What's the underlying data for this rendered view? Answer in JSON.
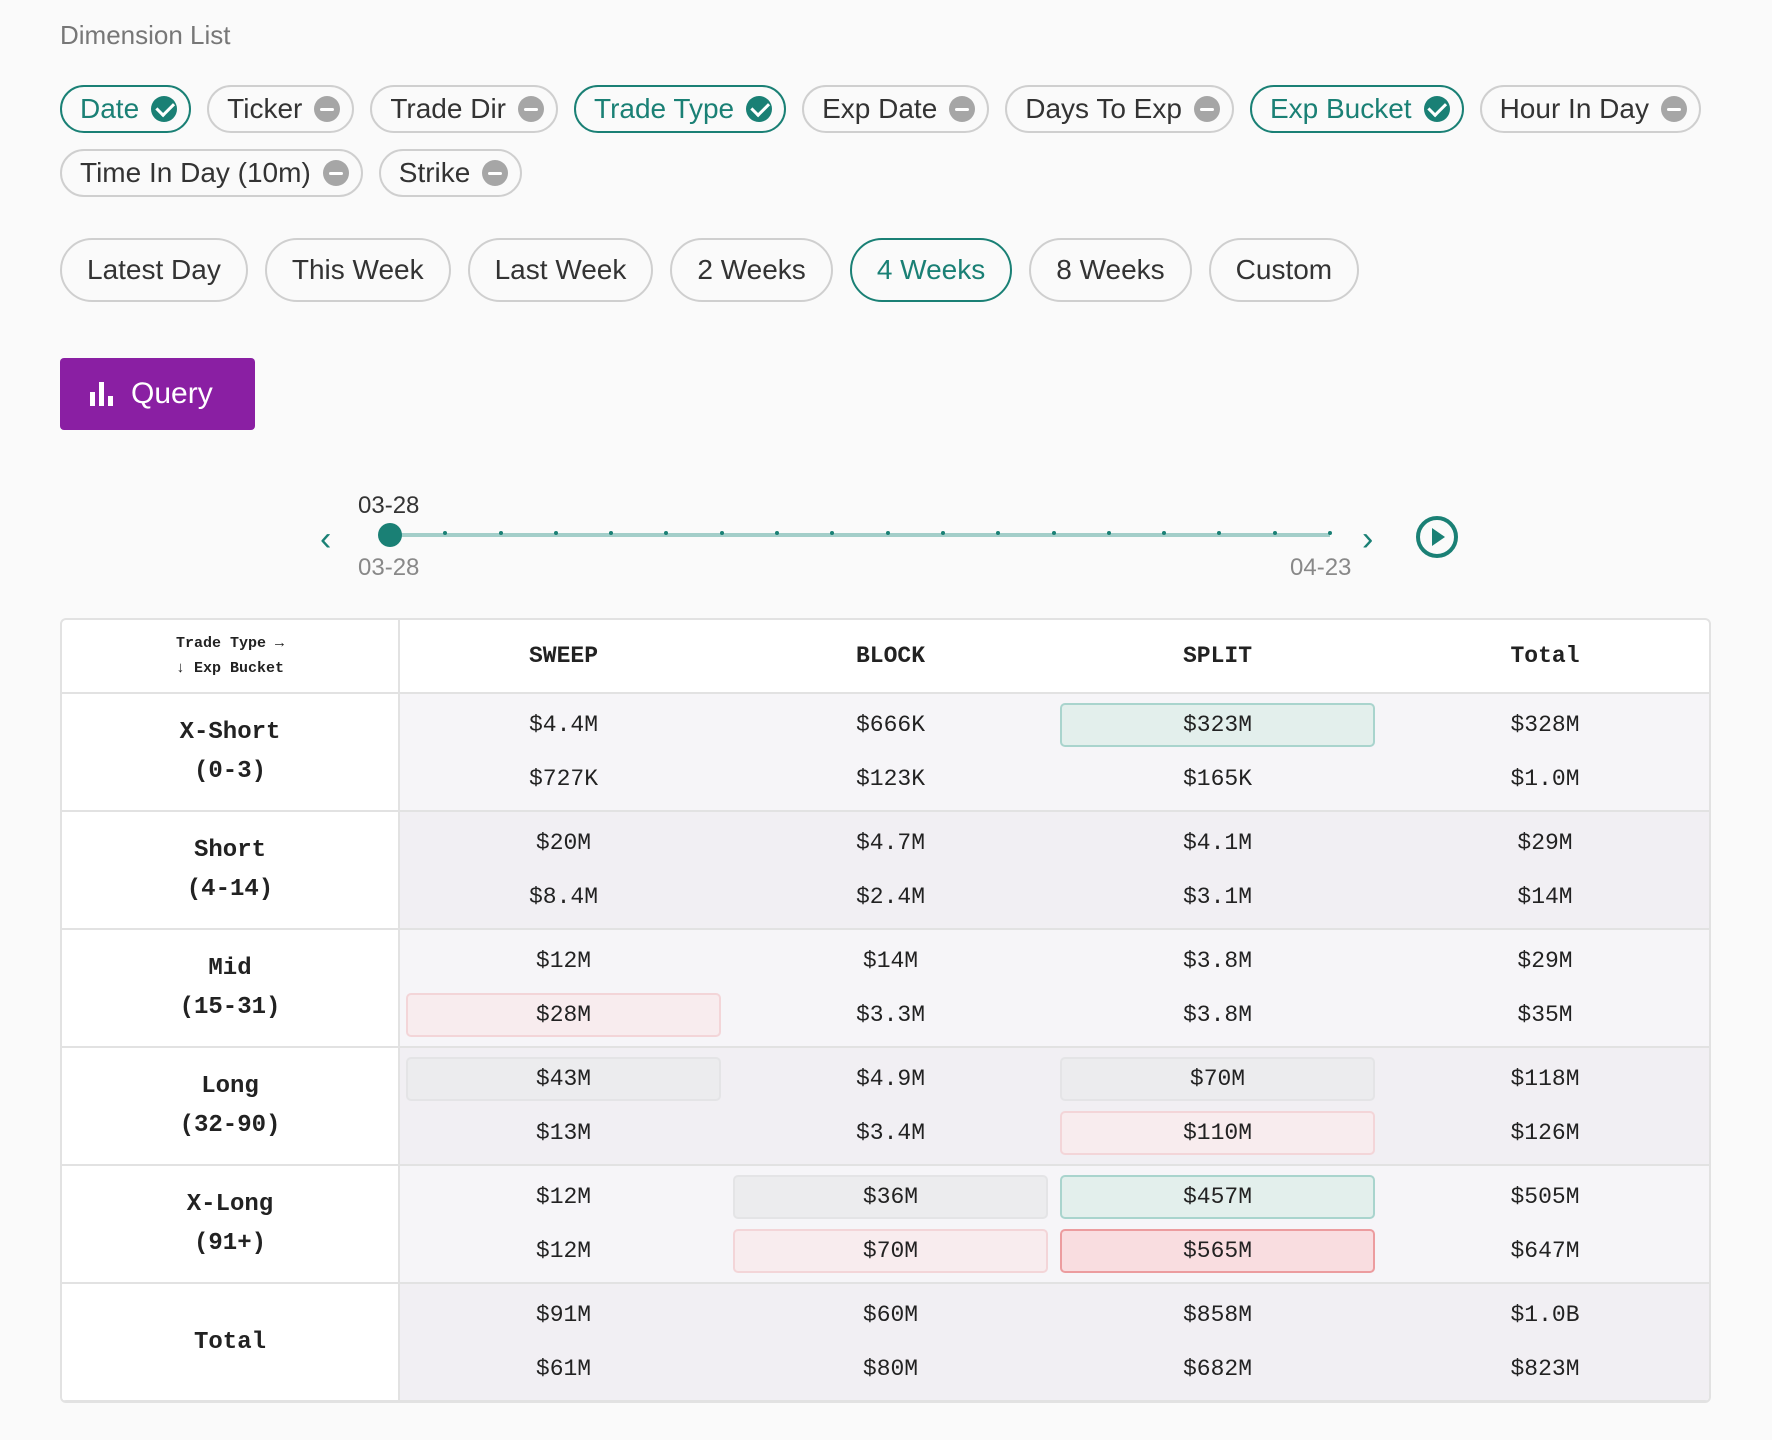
{
  "section_title": "Dimension List",
  "dimensions": [
    {
      "label": "Date",
      "active": true
    },
    {
      "label": "Ticker",
      "active": false
    },
    {
      "label": "Trade Dir",
      "active": false
    },
    {
      "label": "Trade Type",
      "active": true
    },
    {
      "label": "Exp Date",
      "active": false
    },
    {
      "label": "Days To Exp",
      "active": false
    },
    {
      "label": "Exp Bucket",
      "active": true
    },
    {
      "label": "Hour In Day",
      "active": false
    },
    {
      "label": "Time In Day (10m)",
      "active": false
    },
    {
      "label": "Strike",
      "active": false
    }
  ],
  "ranges": [
    {
      "label": "Latest Day",
      "active": false
    },
    {
      "label": "This Week",
      "active": false
    },
    {
      "label": "Last Week",
      "active": false
    },
    {
      "label": "2 Weeks",
      "active": false
    },
    {
      "label": "4 Weeks",
      "active": true
    },
    {
      "label": "8 Weeks",
      "active": false
    },
    {
      "label": "Custom",
      "active": false
    }
  ],
  "query_button": "Query",
  "slider": {
    "current": "03-28",
    "start": "03-28",
    "end": "04-23",
    "steps": 18,
    "position": 0
  },
  "table": {
    "corner_top": "Trade Type →",
    "corner_bottom": "↓ Exp Bucket",
    "columns": [
      "SWEEP",
      "BLOCK",
      "SPLIT",
      "Total"
    ],
    "rows": [
      {
        "label1": "X-Short",
        "label2": "(0-3)",
        "cells": [
          {
            "top": "$4.4M",
            "bottom": "$727K"
          },
          {
            "top": "$666K",
            "bottom": "$123K"
          },
          {
            "top": "$323M",
            "bottom": "$165K",
            "top_hl": "g"
          },
          {
            "top": "$328M",
            "bottom": "$1.0M"
          }
        ]
      },
      {
        "label1": "Short",
        "label2": "(4-14)",
        "cells": [
          {
            "top": "$20M",
            "bottom": "$8.4M"
          },
          {
            "top": "$4.7M",
            "bottom": "$2.4M"
          },
          {
            "top": "$4.1M",
            "bottom": "$3.1M"
          },
          {
            "top": "$29M",
            "bottom": "$14M"
          }
        ]
      },
      {
        "label1": "Mid",
        "label2": "(15-31)",
        "cells": [
          {
            "top": "$12M",
            "bottom": "$28M",
            "bottom_hl": "lr"
          },
          {
            "top": "$14M",
            "bottom": "$3.3M"
          },
          {
            "top": "$3.8M",
            "bottom": "$3.8M"
          },
          {
            "top": "$29M",
            "bottom": "$35M"
          }
        ]
      },
      {
        "label1": "Long",
        "label2": "(32-90)",
        "cells": [
          {
            "top": "$43M",
            "bottom": "$13M",
            "top_hl": "lg"
          },
          {
            "top": "$4.9M",
            "bottom": "$3.4M"
          },
          {
            "top": "$70M",
            "bottom": "$110M",
            "top_hl": "lg",
            "bottom_hl": "lr"
          },
          {
            "top": "$118M",
            "bottom": "$126M"
          }
        ]
      },
      {
        "label1": "X-Long",
        "label2": "(91+)",
        "cells": [
          {
            "top": "$12M",
            "bottom": "$12M"
          },
          {
            "top": "$36M",
            "bottom": "$70M",
            "top_hl": "lg",
            "bottom_hl": "lr"
          },
          {
            "top": "$457M",
            "bottom": "$565M",
            "top_hl": "g",
            "bottom_hl": "r"
          },
          {
            "top": "$505M",
            "bottom": "$647M"
          }
        ]
      },
      {
        "label1": "Total",
        "label2": "",
        "cells": [
          {
            "top": "$91M",
            "bottom": "$61M"
          },
          {
            "top": "$60M",
            "bottom": "$80M"
          },
          {
            "top": "$858M",
            "bottom": "$682M"
          },
          {
            "top": "$1.0B",
            "bottom": "$823M"
          }
        ]
      }
    ]
  },
  "colors": {
    "accent": "#1a8075",
    "query": "#8a1fa3",
    "positive_highlight": "#e3efec",
    "negative_highlight": "#f9dde0"
  }
}
